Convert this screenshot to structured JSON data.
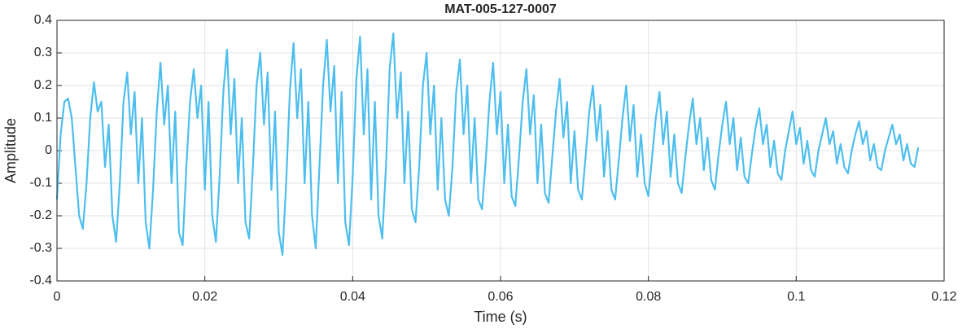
{
  "chart_data": {
    "type": "line",
    "title": "MAT-005-127-0007",
    "xlabel": "Time (s)",
    "ylabel": "Amplitude",
    "x": [
      0,
      0.0005,
      0.001,
      0.0015,
      0.002,
      0.0025,
      0.003,
      0.0035,
      0.004,
      0.0045,
      0.005,
      0.0055,
      0.006,
      0.0065,
      0.007,
      0.0075,
      0.008,
      0.0085,
      0.009,
      0.0095,
      0.01,
      0.0105,
      0.011,
      0.0115,
      0.012,
      0.0125,
      0.013,
      0.0135,
      0.014,
      0.0145,
      0.015,
      0.0155,
      0.016,
      0.0165,
      0.017,
      0.0175,
      0.018,
      0.0185,
      0.019,
      0.0195,
      0.02,
      0.0205,
      0.021,
      0.0215,
      0.022,
      0.0225,
      0.023,
      0.0235,
      0.024,
      0.0245,
      0.025,
      0.0255,
      0.026,
      0.0265,
      0.027,
      0.0275,
      0.028,
      0.0285,
      0.029,
      0.0295,
      0.03,
      0.0305,
      0.031,
      0.0315,
      0.032,
      0.0325,
      0.033,
      0.0335,
      0.034,
      0.0345,
      0.035,
      0.0355,
      0.036,
      0.0365,
      0.037,
      0.0375,
      0.038,
      0.0385,
      0.039,
      0.0395,
      0.04,
      0.0405,
      0.041,
      0.0415,
      0.042,
      0.0425,
      0.043,
      0.0435,
      0.044,
      0.0445,
      0.045,
      0.0455,
      0.046,
      0.0465,
      0.047,
      0.0475,
      0.048,
      0.0485,
      0.049,
      0.0495,
      0.05,
      0.0505,
      0.051,
      0.0515,
      0.052,
      0.0525,
      0.053,
      0.0535,
      0.054,
      0.0545,
      0.055,
      0.0555,
      0.056,
      0.0565,
      0.057,
      0.0575,
      0.058,
      0.0585,
      0.059,
      0.0595,
      0.06,
      0.0605,
      0.061,
      0.0615,
      0.062,
      0.0625,
      0.063,
      0.0635,
      0.064,
      0.0645,
      0.065,
      0.0655,
      0.066,
      0.0665,
      0.067,
      0.0675,
      0.068,
      0.0685,
      0.069,
      0.0695,
      0.07,
      0.0705,
      0.071,
      0.0715,
      0.072,
      0.0725,
      0.073,
      0.0735,
      0.074,
      0.0745,
      0.075,
      0.0755,
      0.076,
      0.0765,
      0.077,
      0.0775,
      0.078,
      0.0785,
      0.079,
      0.0795,
      0.08,
      0.0805,
      0.081,
      0.0815,
      0.082,
      0.0825,
      0.083,
      0.0835,
      0.084,
      0.0845,
      0.085,
      0.0855,
      0.086,
      0.0865,
      0.087,
      0.0875,
      0.088,
      0.0885,
      0.089,
      0.0895,
      0.09,
      0.0905,
      0.091,
      0.0915,
      0.092,
      0.0925,
      0.093,
      0.0935,
      0.094,
      0.0945,
      0.095,
      0.0955,
      0.096,
      0.0965,
      0.097,
      0.0975,
      0.098,
      0.0985,
      0.099,
      0.0995,
      0.1,
      0.1005,
      0.101,
      0.1015,
      0.102,
      0.1025,
      0.103,
      0.1035,
      0.104,
      0.1045,
      0.105,
      0.1055,
      0.106,
      0.1065,
      0.107,
      0.1075,
      0.108,
      0.1085,
      0.109,
      0.1095,
      0.11,
      0.1105,
      0.111,
      0.1115,
      0.112,
      0.1125,
      0.113,
      0.1135,
      0.114,
      0.1145,
      0.115,
      0.1155,
      0.116,
      0.1165
    ],
    "series": [
      {
        "color": "#4dbeee",
        "values": [
          -0.15,
          0.05,
          0.15,
          0.16,
          0.1,
          -0.05,
          -0.2,
          -0.24,
          -0.1,
          0.1,
          0.21,
          0.12,
          0.15,
          -0.05,
          0.08,
          -0.2,
          -0.28,
          -0.1,
          0.15,
          0.24,
          0.05,
          0.18,
          -0.1,
          0.1,
          -0.22,
          -0.3,
          -0.12,
          0.12,
          0.27,
          0.08,
          0.2,
          -0.1,
          0.12,
          -0.25,
          -0.29,
          -0.05,
          0.15,
          0.25,
          0.1,
          0.2,
          -0.12,
          0.15,
          -0.2,
          -0.28,
          -0.08,
          0.18,
          0.31,
          0.05,
          0.22,
          -0.1,
          0.1,
          -0.22,
          -0.27,
          -0.05,
          0.2,
          0.3,
          0.08,
          0.24,
          -0.12,
          0.12,
          -0.25,
          -0.32,
          -0.1,
          0.18,
          0.33,
          0.1,
          0.25,
          -0.1,
          0.15,
          -0.2,
          -0.3,
          -0.05,
          0.2,
          0.34,
          0.12,
          0.26,
          -0.1,
          0.18,
          -0.22,
          -0.29,
          -0.08,
          0.22,
          0.35,
          0.05,
          0.25,
          -0.15,
          0.15,
          -0.2,
          -0.27,
          -0.05,
          0.25,
          0.36,
          0.1,
          0.24,
          -0.1,
          0.12,
          -0.18,
          -0.22,
          -0.05,
          0.2,
          0.3,
          0.05,
          0.2,
          -0.12,
          0.1,
          -0.15,
          -0.2,
          -0.05,
          0.18,
          0.28,
          0.05,
          0.2,
          -0.1,
          0.1,
          -0.15,
          -0.18,
          -0.03,
          0.15,
          0.27,
          0.05,
          0.18,
          -0.1,
          0.08,
          -0.14,
          -0.17,
          -0.02,
          0.15,
          0.25,
          0.05,
          0.17,
          -0.1,
          0.08,
          -0.13,
          -0.16,
          -0.02,
          0.12,
          0.22,
          0.04,
          0.15,
          -0.1,
          0.06,
          -0.12,
          -0.15,
          -0.02,
          0.12,
          0.2,
          0.03,
          0.14,
          -0.08,
          0.06,
          -0.12,
          -0.15,
          -0.03,
          0.1,
          0.2,
          0.03,
          0.14,
          -0.08,
          0.05,
          -0.1,
          -0.14,
          -0.02,
          0.1,
          0.18,
          0.02,
          0.12,
          -0.08,
          0.05,
          -0.1,
          -0.13,
          -0.02,
          0.08,
          0.16,
          0.02,
          0.1,
          -0.06,
          0.04,
          -0.09,
          -0.12,
          -0.01,
          0.08,
          0.15,
          0.02,
          0.1,
          -0.06,
          0.04,
          -0.08,
          -0.1,
          -0.01,
          0.07,
          0.13,
          0.02,
          0.08,
          -0.05,
          0.03,
          -0.07,
          -0.09,
          0,
          0.06,
          0.12,
          0.02,
          0.07,
          -0.04,
          0.03,
          -0.06,
          -0.08,
          0,
          0.05,
          0.1,
          0.02,
          0.06,
          -0.04,
          0.02,
          -0.05,
          -0.07,
          0,
          0.05,
          0.09,
          0.02,
          0.06,
          -0.03,
          0.02,
          -0.05,
          -0.06,
          0,
          0.04,
          0.08,
          0.02,
          0.05,
          -0.03,
          0.02,
          -0.04,
          -0.05,
          0.01
        ]
      }
    ],
    "xlim": [
      0,
      0.12
    ],
    "xticks": [
      0,
      0.02,
      0.04,
      0.06,
      0.08,
      0.1,
      0.12
    ],
    "ylim": [
      -0.4,
      0.4
    ],
    "yticks": [
      -0.4,
      -0.3,
      -0.2,
      -0.1,
      0,
      0.1,
      0.2,
      0.3,
      0.4
    ],
    "grid": true
  }
}
